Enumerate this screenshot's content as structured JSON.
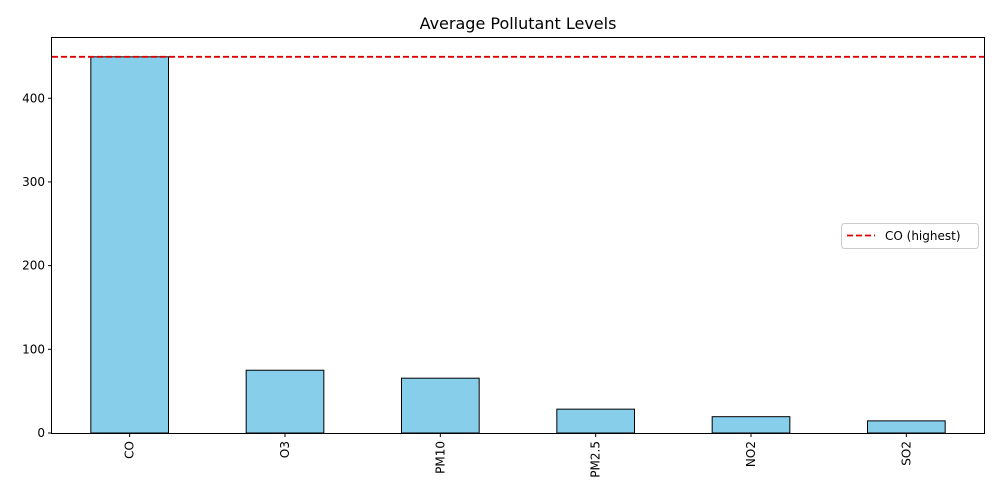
{
  "chart_data": {
    "type": "bar",
    "title": "Average Pollutant Levels",
    "xlabel": "",
    "ylabel": "",
    "categories": [
      "CO",
      "O3",
      "PM10",
      "PM2.5",
      "NO2",
      "SO2"
    ],
    "values": [
      449.5,
      75,
      65.5,
      28.5,
      19.5,
      14.5
    ],
    "ylim": [
      0,
      472
    ],
    "yticks": [
      0,
      100,
      200,
      300,
      400
    ],
    "bar_color": "#87ceeb",
    "bar_edge_color": "#000000",
    "reference_line": {
      "value": 449.5,
      "label": "CO (highest)",
      "color": "#dd0000",
      "style": "dashed"
    },
    "legend_position": "center-right",
    "grid": false
  }
}
